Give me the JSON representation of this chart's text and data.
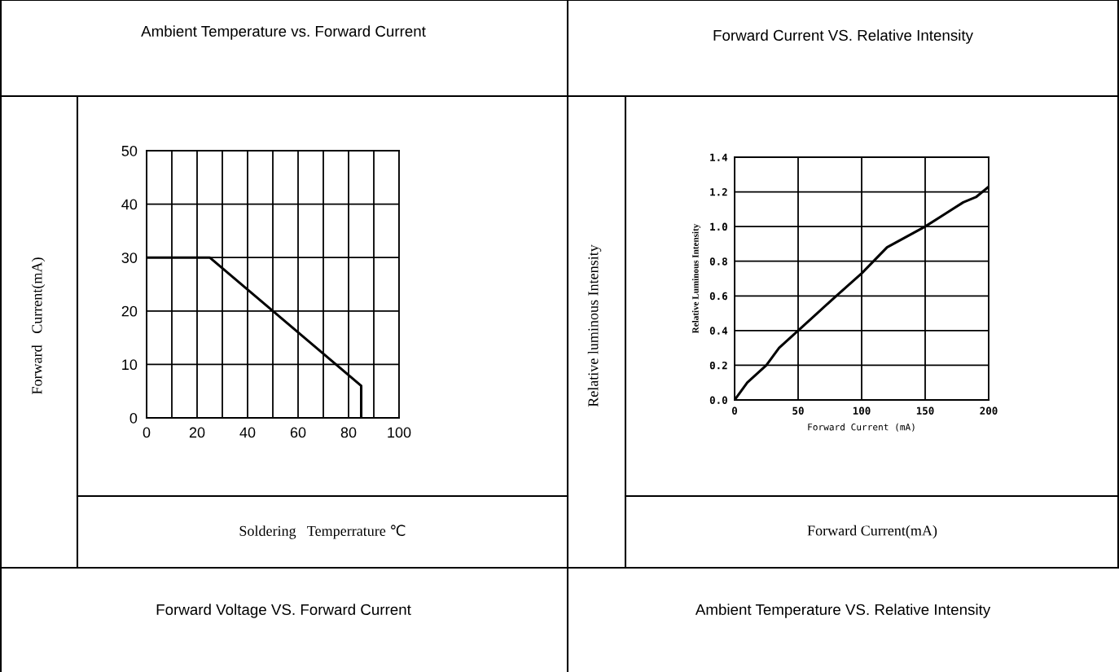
{
  "chart_data": [
    {
      "type": "line",
      "title": "Ambient Temperature vs. Forward Current",
      "xlabel": "Soldering   Temperrature ℃",
      "ylabel": "Forward   Current(mA)",
      "x": [
        0,
        25,
        85,
        85
      ],
      "series": [
        {
          "color": "#000000",
          "values": [
            30,
            30,
            6,
            0
          ]
        }
      ],
      "xlim": [
        0,
        100
      ],
      "xticks": [
        0,
        {
          "value": 10,
          "label": null
        },
        20,
        {
          "value": 30,
          "label": null
        },
        40,
        {
          "value": 50,
          "label": null
        },
        60,
        {
          "value": 70,
          "label": null
        },
        80,
        {
          "value": 90,
          "label": null
        },
        100
      ],
      "ylim": [
        0,
        50
      ],
      "yticks": [
        0,
        10,
        20,
        30,
        40,
        50
      ],
      "grid": true
    },
    {
      "type": "line",
      "title": "Forward Current VS. Relative Intensity",
      "xlabel": "Forward Current (mA)",
      "ylabel": "Relative Luminous Intensity",
      "annotations": [
        "Relative luminous Intensity",
        "Forward Current(mA)"
      ],
      "x": [
        0,
        5,
        10,
        25,
        35,
        50,
        65,
        80,
        100,
        120,
        150,
        165,
        180,
        190,
        200
      ],
      "series": [
        {
          "color": "#000000",
          "values": [
            0,
            0.05,
            0.1,
            0.2,
            0.3,
            0.4,
            0.5,
            0.6,
            0.73,
            0.88,
            1.0,
            1.07,
            1.14,
            1.17,
            1.23
          ]
        }
      ],
      "xlim": [
        0,
        200
      ],
      "xticks": [
        0,
        50,
        100,
        150,
        200
      ],
      "ylim": [
        0,
        1.4
      ],
      "yticks": [
        {
          "value": 0,
          "label": "0.0"
        },
        0.2,
        0.4,
        0.6,
        0.8,
        {
          "value": 1.0,
          "label": "1.0"
        },
        1.2,
        1.4
      ],
      "grid": true
    },
    {
      "type": "other",
      "title": "Forward Voltage VS. Forward Current"
    },
    {
      "type": "other",
      "title": "Ambient Temperature VS. Relative Intensity"
    }
  ]
}
